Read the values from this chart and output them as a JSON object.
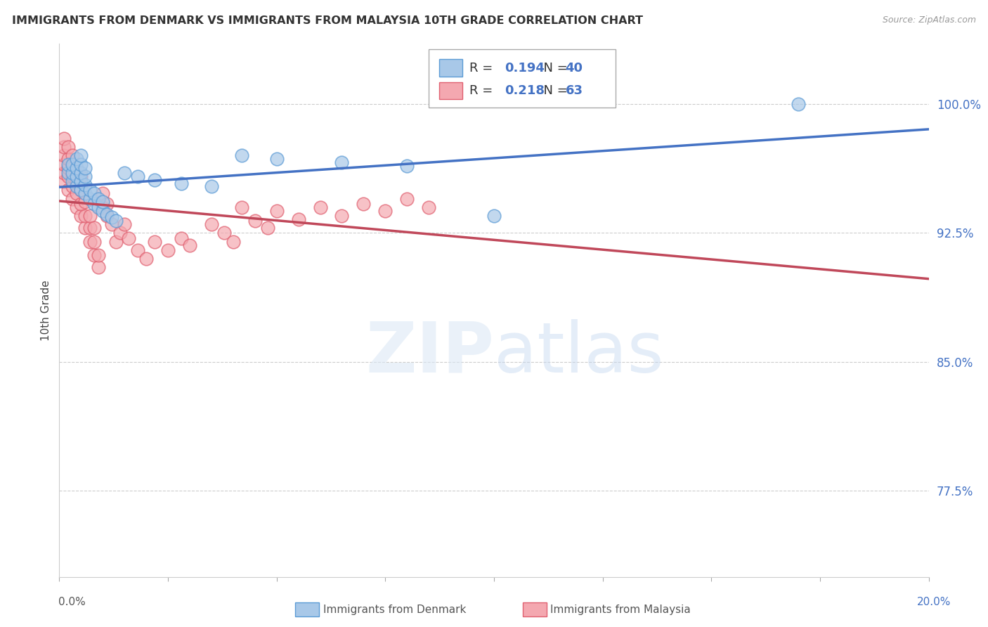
{
  "title": "IMMIGRANTS FROM DENMARK VS IMMIGRANTS FROM MALAYSIA 10TH GRADE CORRELATION CHART",
  "source": "Source: ZipAtlas.com",
  "ylabel": "10th Grade",
  "ytick_labels": [
    "77.5%",
    "85.0%",
    "92.5%",
    "100.0%"
  ],
  "ytick_values": [
    0.775,
    0.85,
    0.925,
    1.0
  ],
  "xlim": [
    0.0,
    0.2
  ],
  "ylim": [
    0.725,
    1.035
  ],
  "denmark_color": "#a8c8e8",
  "denmark_edge_color": "#5b9bd5",
  "malaysia_color": "#f4a8b0",
  "malaysia_edge_color": "#e06070",
  "denmark_line_color": "#4472c4",
  "malaysia_line_color": "#c0485a",
  "legend_denmark_label": "Immigrants from Denmark",
  "legend_malaysia_label": "Immigrants from Malaysia",
  "R_denmark": 0.194,
  "N_denmark": 40,
  "R_malaysia": 0.218,
  "N_malaysia": 63,
  "denmark_scatter_x": [
    0.002,
    0.002,
    0.003,
    0.003,
    0.003,
    0.004,
    0.004,
    0.004,
    0.004,
    0.005,
    0.005,
    0.005,
    0.005,
    0.005,
    0.006,
    0.006,
    0.006,
    0.006,
    0.007,
    0.007,
    0.008,
    0.008,
    0.009,
    0.009,
    0.01,
    0.01,
    0.011,
    0.012,
    0.013,
    0.015,
    0.018,
    0.022,
    0.028,
    0.035,
    0.042,
    0.05,
    0.065,
    0.08,
    0.1,
    0.17
  ],
  "denmark_scatter_y": [
    0.96,
    0.965,
    0.955,
    0.96,
    0.965,
    0.952,
    0.958,
    0.963,
    0.968,
    0.95,
    0.955,
    0.96,
    0.965,
    0.97,
    0.948,
    0.953,
    0.958,
    0.963,
    0.945,
    0.95,
    0.942,
    0.948,
    0.94,
    0.945,
    0.938,
    0.943,
    0.936,
    0.934,
    0.932,
    0.96,
    0.958,
    0.956,
    0.954,
    0.952,
    0.97,
    0.968,
    0.966,
    0.964,
    0.935,
    1.0
  ],
  "malaysia_scatter_x": [
    0.001,
    0.001,
    0.001,
    0.001,
    0.001,
    0.001,
    0.002,
    0.002,
    0.002,
    0.002,
    0.002,
    0.003,
    0.003,
    0.003,
    0.003,
    0.003,
    0.004,
    0.004,
    0.004,
    0.005,
    0.005,
    0.005,
    0.005,
    0.006,
    0.006,
    0.006,
    0.007,
    0.007,
    0.007,
    0.008,
    0.008,
    0.008,
    0.009,
    0.009,
    0.01,
    0.01,
    0.011,
    0.011,
    0.012,
    0.013,
    0.014,
    0.015,
    0.016,
    0.018,
    0.02,
    0.022,
    0.025,
    0.028,
    0.03,
    0.035,
    0.038,
    0.04,
    0.042,
    0.045,
    0.048,
    0.05,
    0.055,
    0.06,
    0.065,
    0.07,
    0.075,
    0.08,
    0.085
  ],
  "malaysia_scatter_y": [
    0.955,
    0.96,
    0.965,
    0.97,
    0.975,
    0.98,
    0.95,
    0.958,
    0.963,
    0.968,
    0.975,
    0.945,
    0.952,
    0.958,
    0.963,
    0.97,
    0.94,
    0.948,
    0.955,
    0.935,
    0.942,
    0.95,
    0.958,
    0.928,
    0.935,
    0.943,
    0.92,
    0.928,
    0.935,
    0.912,
    0.92,
    0.928,
    0.905,
    0.912,
    0.94,
    0.948,
    0.935,
    0.942,
    0.93,
    0.92,
    0.925,
    0.93,
    0.922,
    0.915,
    0.91,
    0.92,
    0.915,
    0.922,
    0.918,
    0.93,
    0.925,
    0.92,
    0.94,
    0.932,
    0.928,
    0.938,
    0.933,
    0.94,
    0.935,
    0.942,
    0.938,
    0.945,
    0.94
  ]
}
